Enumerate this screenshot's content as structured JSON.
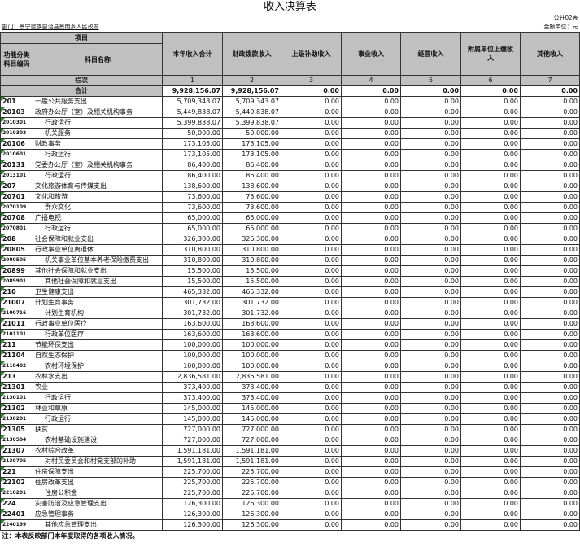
{
  "title": "收入决算表",
  "form_no": "公开02表",
  "department": "部门：景宁畲族自治县景南乡人民政府",
  "unit": "金额单位：元",
  "headers": {
    "item": "项目",
    "code": "功能分类科目编码",
    "name": "科目名称",
    "cols": [
      "本年收入合计",
      "财政拨款收入",
      "上级补助收入",
      "事业收入",
      "经营收入",
      "附属单位上缴收入",
      "其他收入"
    ]
  },
  "col_index_label": "栏次",
  "col_index": [
    "1",
    "2",
    "3",
    "4",
    "5",
    "6",
    "7"
  ],
  "total_label": "合计",
  "totals": [
    "9,928,156.07",
    "9,928,156.07",
    "0.00",
    "0.00",
    "0.00",
    "0.00",
    "0.00"
  ],
  "rows": [
    [
      "201",
      "一般公共服务支出",
      "5,709,343.07"
    ],
    [
      "20103",
      "政府办公厅（室）及相关机构事务",
      "5,449,838.07"
    ],
    [
      "2010301",
      "行政运行",
      "5,399,838.07"
    ],
    [
      "2010303",
      "机关服务",
      "50,000.00"
    ],
    [
      "20106",
      "财政事务",
      "173,105.00"
    ],
    [
      "2010601",
      "行政运行",
      "173,105.00"
    ],
    [
      "20131",
      "党委办公厅（室）及相关机构事务",
      "86,400.00"
    ],
    [
      "2013101",
      "行政运行",
      "86,400.00"
    ],
    [
      "207",
      "文化旅游体育与传媒支出",
      "138,600.00"
    ],
    [
      "20701",
      "文化和旅游",
      "73,600.00"
    ],
    [
      "2070109",
      "群众文化",
      "73,600.00"
    ],
    [
      "20708",
      "广播电视",
      "65,000.00"
    ],
    [
      "2070801",
      "行政运行",
      "65,000.00"
    ],
    [
      "208",
      "社会保障和就业支出",
      "326,300.00"
    ],
    [
      "20805",
      "行政事业单位离退休",
      "310,800.00"
    ],
    [
      "2080505",
      "机关事业单位基本养老保险缴费支出",
      "310,800.00"
    ],
    [
      "20899",
      "其他社会保障和就业支出",
      "15,500.00"
    ],
    [
      "2089901",
      "其他社会保障和就业支出",
      "15,500.00"
    ],
    [
      "210",
      "卫生健康支出",
      "465,332.00"
    ],
    [
      "21007",
      "计划生育事务",
      "301,732.00"
    ],
    [
      "2100716",
      "计划生育机构",
      "301,732.00"
    ],
    [
      "21011",
      "行政事业单位医疗",
      "163,600.00"
    ],
    [
      "2101101",
      "行政单位医疗",
      "163,600.00"
    ],
    [
      "211",
      "节能环保支出",
      "100,000.00"
    ],
    [
      "21104",
      "自然生态保护",
      "100,000.00"
    ],
    [
      "2110402",
      "农村环境保护",
      "100,000.00"
    ],
    [
      "213",
      "农林水支出",
      "2,836,581.00"
    ],
    [
      "21301",
      "农业",
      "373,400.00"
    ],
    [
      "2130101",
      "行政运行",
      "373,400.00"
    ],
    [
      "21302",
      "林业和草原",
      "145,000.00"
    ],
    [
      "2130201",
      "行政运行",
      "145,000.00"
    ],
    [
      "21305",
      "扶贫",
      "727,000.00"
    ],
    [
      "2130504",
      "农村基础设施建设",
      "727,000.00"
    ],
    [
      "21307",
      "农村综合改革",
      "1,591,181.00"
    ],
    [
      "2130705",
      "对村民委员会和村党支部的补助",
      "1,591,181.00"
    ],
    [
      "221",
      "住房保障支出",
      "225,700.00"
    ],
    [
      "22102",
      "住房改革支出",
      "225,700.00"
    ],
    [
      "2210201",
      "住房公积金",
      "225,700.00"
    ],
    [
      "224",
      "灾害防治及应急管理支出",
      "126,300.00"
    ],
    [
      "22401",
      "应急管理事务",
      "126,300.00"
    ],
    [
      "2240199",
      "其他应急管理支出",
      "126,300.00"
    ]
  ],
  "zero": "0.00",
  "note": "注：本表反映部门本年度取得的各项收入情况。"
}
